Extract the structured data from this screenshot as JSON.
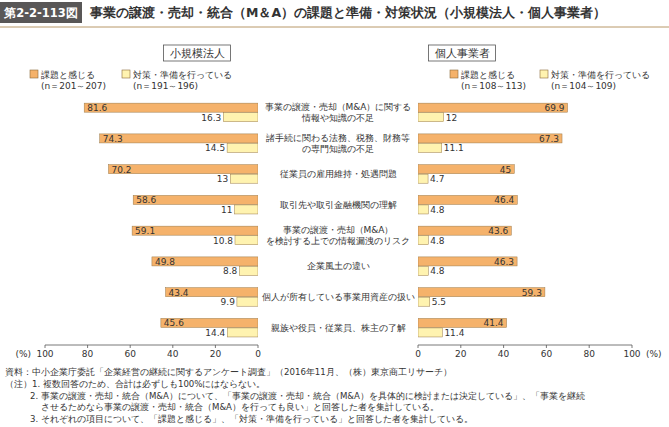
{
  "header": {
    "figure_number": "第2-2-113図",
    "title": "事業の譲渡・売却・統合（M＆A）の課題と準備・対策状況（小規模法人・個人事業者）"
  },
  "chart_data": [
    {
      "type": "bar",
      "orientation": "horizontal",
      "title": "小規模法人",
      "xlabel": "(%)",
      "categories": [
        "事業の譲渡・売却（M&A）に関する\n情報や知識の不足",
        "諸手続に関わる法務、税務、財務等\nの専門知識の不足",
        "従業員の雇用維持・処遇問題",
        "取引先や取引金融機関の理解",
        "事業の譲渡・売却（M&A）\nを検討する上での情報漏洩のリスク",
        "企業風土の違い",
        "個人が所有している事業用資産の扱い",
        "親族や役員・従業員、株主の了解"
      ],
      "series": [
        {
          "name": "課題と感じる\n(n＝201～207)",
          "color": "#f5b26b",
          "values": [
            81.6,
            74.3,
            70.2,
            58.6,
            59.1,
            49.8,
            43.4,
            45.6
          ]
        },
        {
          "name": "対策・準備を行っている\n(n＝191～196)",
          "color": "#fff3b0",
          "values": [
            16.3,
            14.5,
            13.0,
            11.0,
            10.8,
            8.8,
            9.9,
            14.4
          ]
        }
      ],
      "xlim": [
        0,
        100
      ],
      "xticks": [
        0,
        20,
        40,
        60,
        80,
        100
      ],
      "grid": false,
      "data_labels": true,
      "legend": "top"
    },
    {
      "type": "bar",
      "orientation": "horizontal",
      "title": "個人事業者",
      "xlabel": "(%)",
      "categories": [
        "事業の譲渡・売却（M&A）に関する\n情報や知識の不足",
        "諸手続に関わる法務、税務、財務等\nの専門知識の不足",
        "従業員の雇用維持・処遇問題",
        "取引先や取引金融機関の理解",
        "事業の譲渡・売却（M&A）\nを検討する上での情報漏洩のリスク",
        "企業風土の違い",
        "個人が所有している事業用資産の扱い",
        "親族や役員・従業員、株主の了解"
      ],
      "series": [
        {
          "name": "課題と感じる\n(n＝108～113)",
          "color": "#f5b26b",
          "values": [
            69.9,
            67.3,
            45.0,
            46.4,
            43.6,
            46.3,
            59.3,
            41.4
          ]
        },
        {
          "name": "対策・準備を行っている\n(n＝104～109)",
          "color": "#fff3b0",
          "values": [
            12.0,
            11.1,
            4.7,
            4.8,
            4.8,
            4.8,
            5.5,
            11.4
          ]
        }
      ],
      "xlim": [
        0,
        100
      ],
      "xticks": [
        0,
        20,
        40,
        60,
        80,
        100
      ],
      "grid": false,
      "data_labels": true,
      "legend": "top"
    }
  ],
  "source": "資料：中小企業庁委託「企業経営の継続に関するアンケート調査」（2016年11月、（株）東京商工リサーチ）",
  "notes": [
    "（注）1. 複数回答のため、合計は必ずしも100%にはならない。",
    "2. 事業の譲渡・売却・統合（M&A）について、「事業の譲渡・売却・統合（M&A）を具体的に検討または決定している」、「事業を継続\nさせるためなら事業の譲渡・売却・統合（M&A）を行っても良い」と回答した者を集計している。",
    "3. それぞれの項目について、「課題と感じる」、「対策・準備を行っている」と回答した者を集計している。"
  ]
}
